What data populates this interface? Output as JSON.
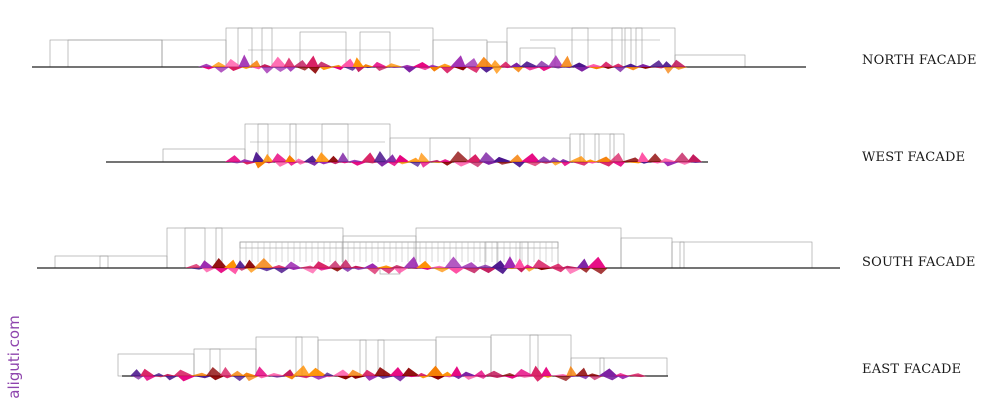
{
  "facades": [
    {
      "id": "north",
      "label": "NORTH FACADE"
    },
    {
      "id": "west",
      "label": "WEST FACADE"
    },
    {
      "id": "south",
      "label": "SOUTH FACADE"
    },
    {
      "id": "east",
      "label": "EAST FACADE"
    }
  ],
  "watermark": "aliguti.com",
  "colors": {
    "outline": "#9a9a9a",
    "ground": "#222222",
    "palette": [
      "#e6007e",
      "#ff4fa3",
      "#c2185b",
      "#7b1fa2",
      "#9c27b0",
      "#f57c00",
      "#ff8f00",
      "#8b0000",
      "#4a148c",
      "#d81b60"
    ],
    "watermark": "#8e44ad"
  }
}
